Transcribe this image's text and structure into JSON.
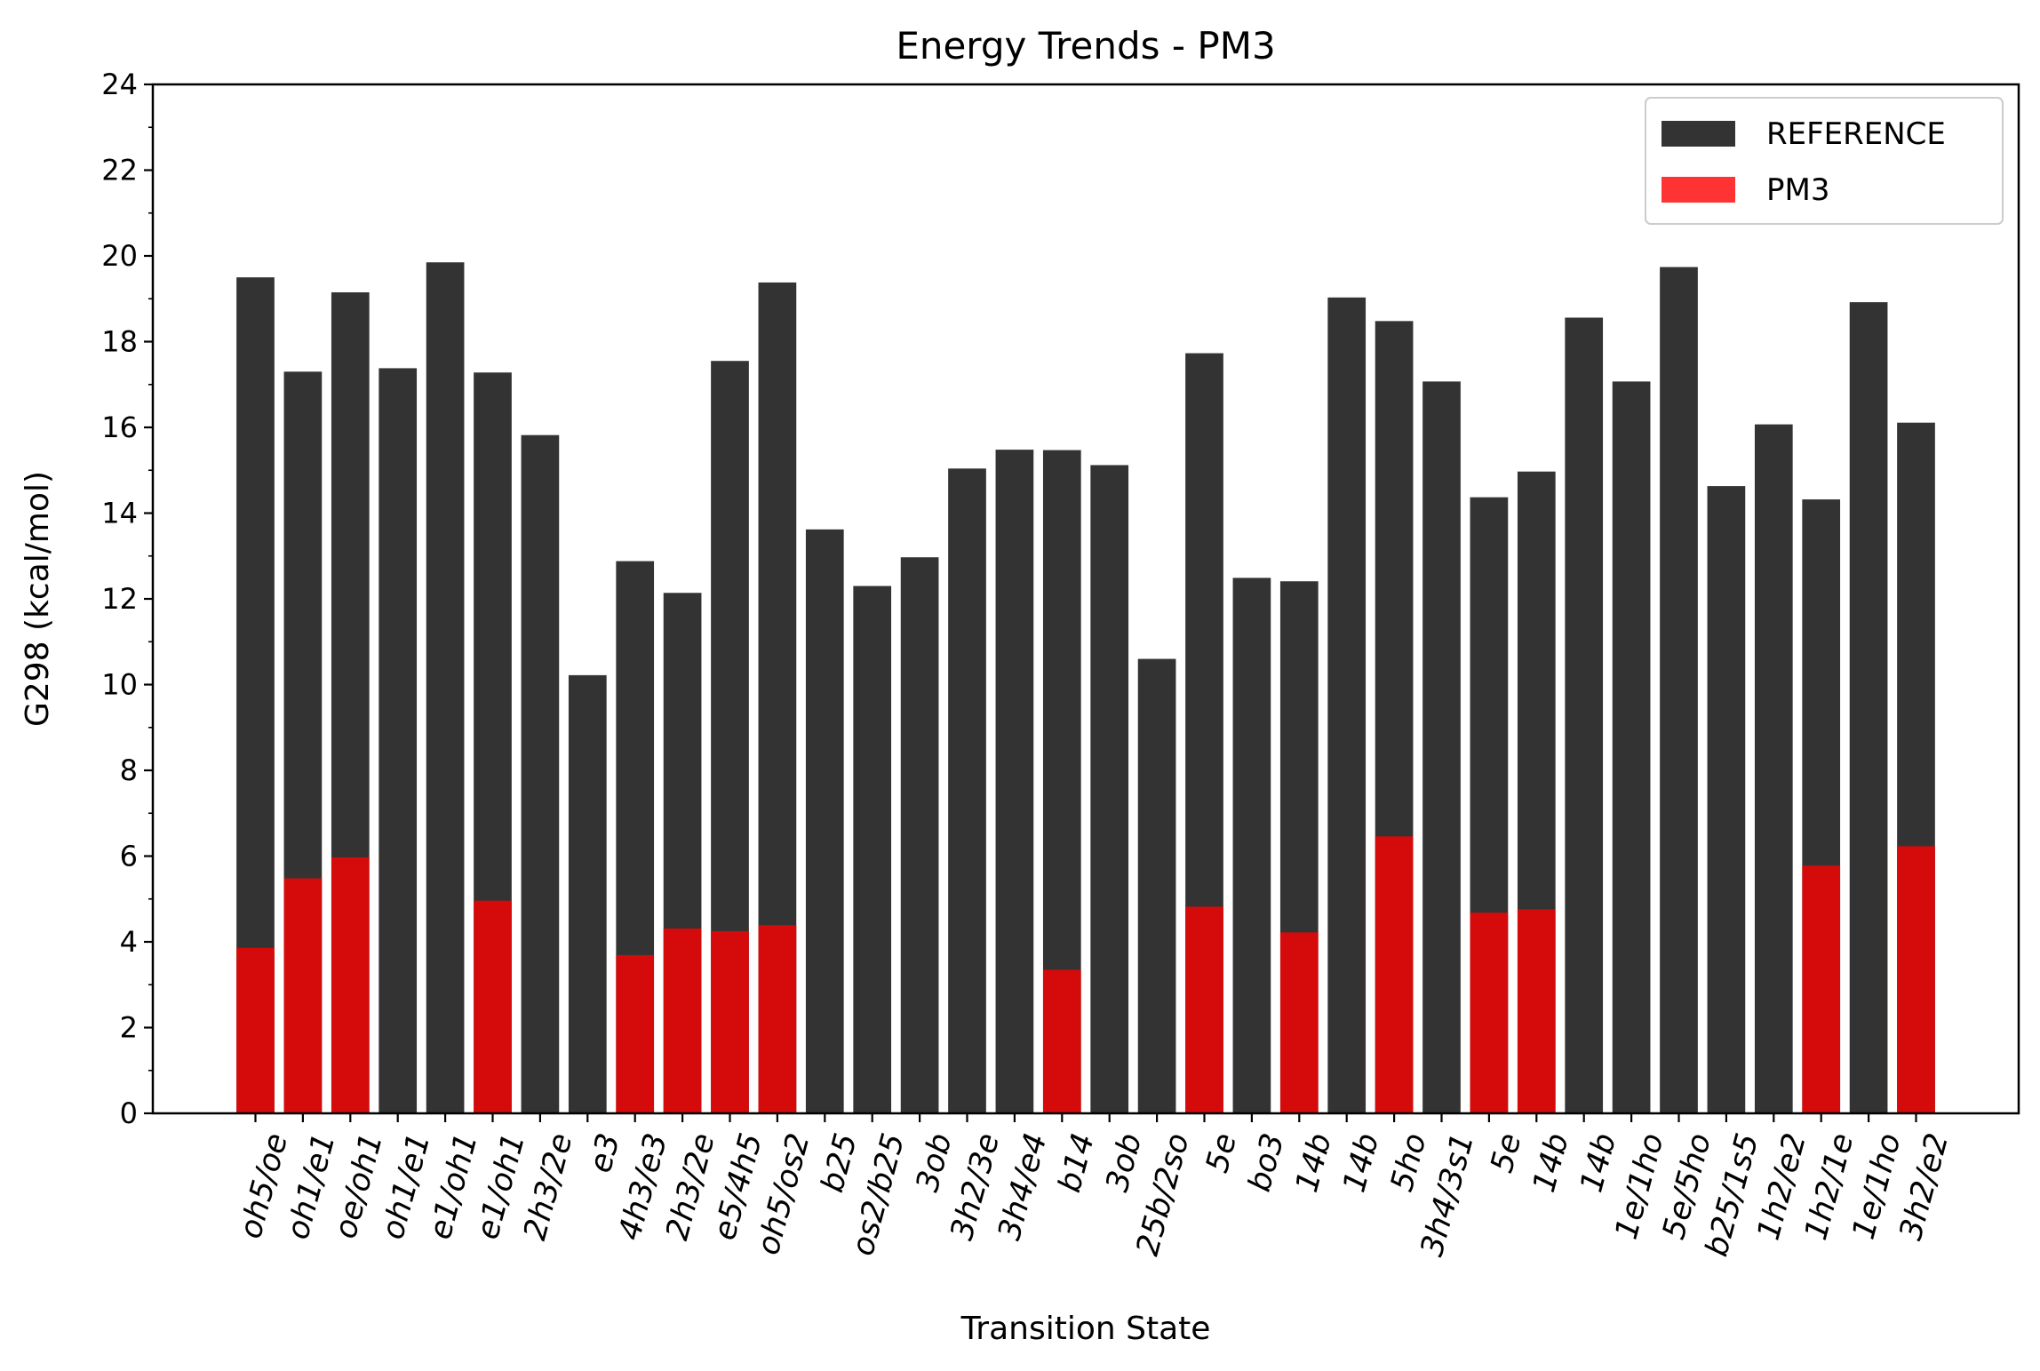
{
  "chart_data": {
    "type": "bar",
    "title": "Energy Trends - PM3",
    "xlabel": "Transition State",
    "ylabel": "G298 (kcal/mol)",
    "ylim": [
      0,
      24
    ],
    "yticks": [
      0,
      2,
      4,
      6,
      8,
      10,
      12,
      14,
      16,
      18,
      20,
      22,
      24
    ],
    "grid": false,
    "legend_position": "top-right",
    "categories": [
      "oh5/oe",
      "oh1/e1",
      "oe/oh1",
      "oh1/e1",
      "e1/oh1",
      "e1/oh1",
      "2h3/2e",
      "e3",
      "4h3/e3",
      "2h3/2e",
      "e5/4h5",
      "oh5/os2",
      "b25",
      "os2/b25",
      "3ob",
      "3h2/3e",
      "3h4/e4",
      "b14",
      "3ob",
      "25b/2so",
      "5e",
      "bo3",
      "14b",
      "14b",
      "5ho",
      "3h4/3s1",
      "5e",
      "14b",
      "14b",
      "1e/1ho",
      "5e/5ho",
      "b25/1s5",
      "1h2/e2",
      "1h2/1e",
      "1e/1ho",
      "3h2/e2"
    ],
    "series": [
      {
        "name": "REFERENCE",
        "color": "#333333",
        "values": [
          19.5,
          17.3,
          19.15,
          17.38,
          19.85,
          17.28,
          15.82,
          10.22,
          12.88,
          12.14,
          17.55,
          19.38,
          13.62,
          12.3,
          12.97,
          15.04,
          15.48,
          15.47,
          15.12,
          10.6,
          17.73,
          12.49,
          12.41,
          19.03,
          18.48,
          17.07,
          14.37,
          14.97,
          18.56,
          17.07,
          19.74,
          14.63,
          16.07,
          14.32,
          18.92,
          16.11
        ]
      },
      {
        "name": "PM3",
        "color": "#d50b0b",
        "values": [
          3.86,
          5.48,
          5.97,
          null,
          null,
          4.96,
          null,
          null,
          3.69,
          4.31,
          4.25,
          4.39,
          null,
          null,
          null,
          null,
          null,
          3.35,
          null,
          null,
          4.82,
          null,
          4.22,
          null,
          6.46,
          null,
          4.68,
          4.76,
          null,
          null,
          null,
          null,
          null,
          5.78,
          null,
          6.23
        ]
      }
    ]
  }
}
